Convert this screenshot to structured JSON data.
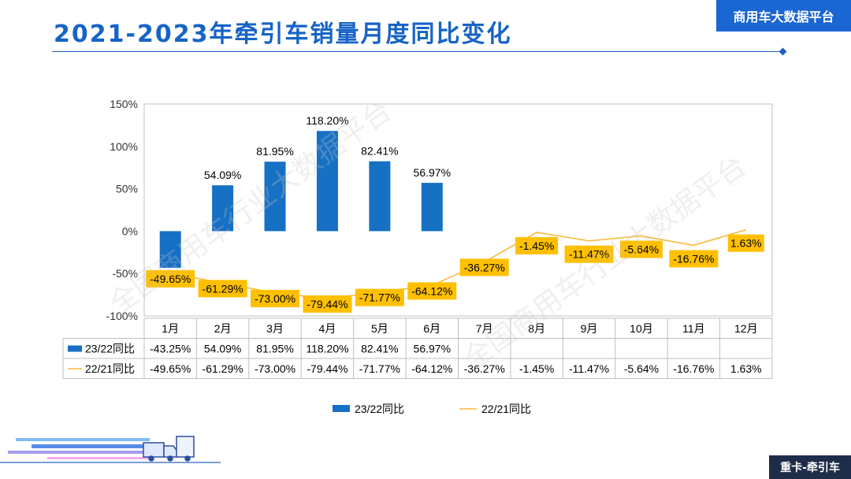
{
  "header": {
    "title": "2021-2023年牵引车销量月度同比变化",
    "brand": "商用车大数据平台"
  },
  "footer": {
    "tag": "重卡-牵引车"
  },
  "watermark": "全国商用车行业大数据平台",
  "colors": {
    "bar": "#1670c4",
    "line": "#f8b93a",
    "label_box": "#fec000",
    "title": "#1763c6",
    "brand_bg": "#1a66d2",
    "footer_bg": "#1e2d49"
  },
  "chart_data": {
    "type": "bar",
    "title": "",
    "xlabel": "",
    "ylabel": "",
    "ylim": [
      -100,
      150
    ],
    "yticks": [
      "-100%",
      "-50%",
      "0%",
      "50%",
      "100%",
      "150%"
    ],
    "yticks_values": [
      -100,
      -50,
      0,
      50,
      100,
      150
    ],
    "grid": false,
    "legend_position": "bottom",
    "categories": [
      "1月",
      "2月",
      "3月",
      "4月",
      "5月",
      "6月",
      "7月",
      "8月",
      "9月",
      "10月",
      "11月",
      "12月"
    ],
    "series": [
      {
        "name": "23/22同比",
        "type": "bar",
        "values": [
          -43.25,
          54.09,
          81.95,
          118.2,
          82.41,
          56.97,
          null,
          null,
          null,
          null,
          null,
          null
        ],
        "labels": [
          "-43.25%",
          "54.09%",
          "81.95%",
          "118.20%",
          "82.41%",
          "56.97%",
          "",
          "",
          "",
          "",
          "",
          ""
        ]
      },
      {
        "name": "22/21同比",
        "type": "line",
        "values": [
          -49.65,
          -61.29,
          -73.0,
          -79.44,
          -71.77,
          -64.12,
          -36.27,
          -1.45,
          -11.47,
          -5.64,
          -16.76,
          1.63
        ],
        "labels": [
          "-49.65%",
          "-61.29%",
          "-73.00%",
          "-79.44%",
          "-71.77%",
          "-64.12%",
          "-36.27%",
          "-1.45%",
          "-11.47%",
          "-5.64%",
          "-16.76%",
          "1.63%"
        ]
      }
    ]
  }
}
